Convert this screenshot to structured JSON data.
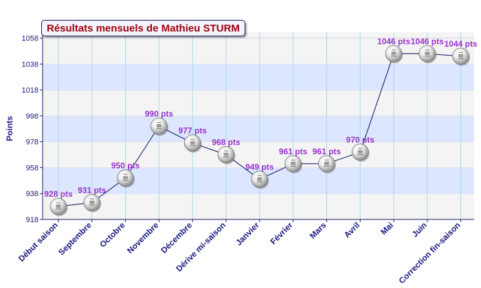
{
  "chart_data": {
    "type": "line",
    "title": "Résultats mensuels de Mathieu STURM",
    "ylabel": "Points",
    "xlabel": "",
    "categories": [
      "Début saison",
      "Septembre",
      "Octobre",
      "Novembre",
      "Décembre",
      "Dérive mi-saison",
      "Janvier",
      "Février",
      "Mars",
      "Avril",
      "Mai",
      "Juin",
      "Correction fin-saison"
    ],
    "values": [
      928,
      931,
      950,
      990,
      977,
      968,
      949,
      961,
      961,
      970,
      1046,
      1046,
      1044
    ],
    "point_labels": [
      "928 pts",
      "931 pts",
      "950 pts",
      "990 pts",
      "977 pts",
      "968 pts",
      "949 pts",
      "961 pts",
      "961 pts",
      "970 pts",
      "1046 pts",
      "1046 pts",
      "1044 pts"
    ],
    "yticks": [
      918,
      938,
      958,
      978,
      998,
      1018,
      1038,
      1058
    ],
    "ylim": [
      918,
      1058
    ],
    "grid": true,
    "colors": {
      "line": "#0a0a60",
      "point_label": "#9933cc",
      "axis_text": "#1a1a80",
      "band_light": "#f4f4f4",
      "band_blue": "#dde6ff",
      "vertical_grid": "#a8d8e8",
      "title_text": "#a00010"
    },
    "marker_icon": "ball-logo-icon"
  }
}
